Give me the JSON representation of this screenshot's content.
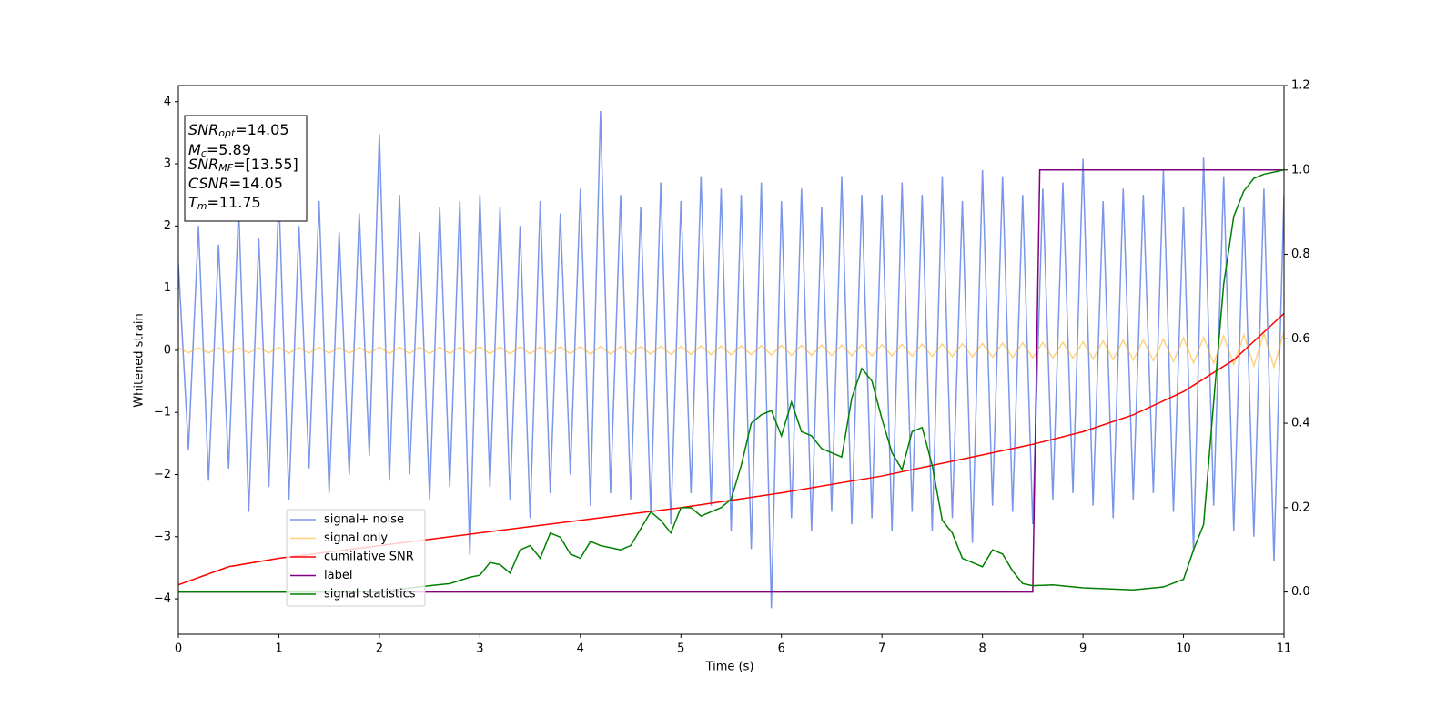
{
  "chart_data": {
    "type": "line",
    "xlabel": "Time (s)",
    "ylabel": "Whitened strain",
    "xlim": [
      0,
      11
    ],
    "xticks": [
      0,
      1,
      2,
      3,
      4,
      5,
      6,
      7,
      8,
      9,
      10,
      11
    ],
    "ylim": [
      -4.57,
      4.26
    ],
    "yticks": [
      {
        "value": -4,
        "label": "−4"
      },
      {
        "value": -3,
        "label": "−3"
      },
      {
        "value": -2,
        "label": "−2"
      },
      {
        "value": -1,
        "label": "−1"
      },
      0,
      1,
      2,
      3,
      4
    ],
    "y2lim": [
      -0.1,
      1.2
    ],
    "y2ticks": [
      {
        "value": 0,
        "label": "0.0"
      },
      {
        "value": 0.2,
        "label": "0.2"
      },
      {
        "value": 0.4,
        "label": "0.4"
      },
      {
        "value": 0.6,
        "label": "0.6"
      },
      {
        "value": 0.8,
        "label": "0.8"
      },
      {
        "value": 1,
        "label": "1.0"
      },
      {
        "value": 1.2,
        "label": "1.2"
      }
    ],
    "grid": false,
    "legend": "lower left",
    "annotations": [
      {
        "text": "SNR",
        "sub": "opt",
        "tail": "=14.05"
      },
      {
        "text": "M",
        "sub": "c",
        "tail": "=5.89"
      },
      {
        "text": "SNR",
        "sub": "MF",
        "tail": "=[13.55]"
      },
      {
        "text": "CSNR",
        "tail": "=14.05"
      },
      {
        "text": "T",
        "sub": "m",
        "tail": "=11.75"
      }
    ],
    "x": [
      0,
      0.1,
      0.2,
      0.3,
      0.4,
      0.5,
      0.6,
      0.7,
      0.8,
      0.9,
      1,
      1.1,
      1.2,
      1.3,
      1.4,
      1.5,
      1.6,
      1.7,
      1.8,
      1.9,
      2,
      2.1,
      2.2,
      2.3,
      2.4,
      2.5,
      2.6,
      2.7,
      2.8,
      2.9,
      3,
      3.1,
      3.2,
      3.3,
      3.4,
      3.5,
      3.6,
      3.7,
      3.8,
      3.9,
      4,
      4.1,
      4.2,
      4.3,
      4.4,
      4.5,
      4.6,
      4.7,
      4.8,
      4.9,
      5,
      5.1,
      5.2,
      5.3,
      5.4,
      5.5,
      5.6,
      5.7,
      5.8,
      5.9,
      6,
      6.1,
      6.2,
      6.3,
      6.4,
      6.5,
      6.6,
      6.7,
      6.8,
      6.9,
      7,
      7.1,
      7.2,
      7.3,
      7.4,
      7.5,
      7.6,
      7.7,
      7.8,
      7.9,
      8,
      8.1,
      8.2,
      8.3,
      8.4,
      8.5,
      8.6,
      8.7,
      8.8,
      8.9,
      9,
      9.1,
      9.2,
      9.3,
      9.4,
      9.5,
      9.6,
      9.7,
      9.8,
      9.9,
      10,
      10.1,
      10.2,
      10.3,
      10.4,
      10.5,
      10.6,
      10.7,
      10.8,
      10.9,
      11
    ],
    "series": [
      {
        "name": "signal+ noise",
        "color": "royalblue",
        "alpha": 0.7,
        "values": [
          1.4,
          -1.6,
          2.0,
          -2.1,
          1.7,
          -1.9,
          2.3,
          -2.6,
          1.8,
          -2.2,
          2.5,
          -2.4,
          2.0,
          -1.9,
          2.4,
          -2.3,
          1.9,
          -2.0,
          2.2,
          -1.7,
          3.48,
          -2.1,
          2.5,
          -2.0,
          1.9,
          -2.4,
          2.3,
          -2.2,
          2.4,
          -3.3,
          2.5,
          -2.2,
          2.3,
          -2.4,
          2.0,
          -2.7,
          2.4,
          -2.3,
          2.2,
          -2.0,
          2.6,
          -2.5,
          3.85,
          -2.3,
          2.5,
          -2.4,
          2.3,
          -2.6,
          2.7,
          -2.8,
          2.4,
          -2.3,
          2.8,
          -2.5,
          2.6,
          -2.9,
          2.5,
          -3.2,
          2.7,
          -4.15,
          2.4,
          -2.7,
          2.6,
          -2.9,
          2.3,
          -2.6,
          2.8,
          -2.8,
          2.5,
          -2.7,
          2.5,
          -2.9,
          2.7,
          -2.6,
          2.5,
          -2.9,
          2.8,
          -2.7,
          2.4,
          -3.1,
          2.9,
          -2.5,
          2.8,
          -2.6,
          2.5,
          -2.8,
          2.6,
          -2.4,
          2.7,
          -2.3,
          3.08,
          -2.5,
          2.4,
          -2.7,
          2.6,
          -2.4,
          2.5,
          -2.3,
          2.9,
          -2.6,
          2.3,
          -3.25,
          3.1,
          -2.5,
          2.8,
          -2.9,
          2.3,
          -3.0,
          2.6,
          -3.4,
          2.5
        ]
      },
      {
        "name": "signal only",
        "color": "orange",
        "alpha": 0.5,
        "values": [
          0.04,
          -0.04,
          0.04,
          -0.04,
          0.04,
          -0.04,
          0.04,
          -0.04,
          0.04,
          -0.04,
          0.045,
          -0.045,
          0.045,
          -0.045,
          0.045,
          -0.045,
          0.045,
          -0.045,
          0.045,
          -0.045,
          0.05,
          -0.05,
          0.05,
          -0.05,
          0.05,
          -0.05,
          0.05,
          -0.05,
          0.05,
          -0.05,
          0.055,
          -0.055,
          0.055,
          -0.055,
          0.055,
          -0.055,
          0.055,
          -0.055,
          0.055,
          -0.055,
          0.06,
          -0.06,
          0.06,
          -0.06,
          0.06,
          -0.06,
          0.06,
          -0.06,
          0.065,
          -0.065,
          0.065,
          -0.065,
          0.07,
          -0.07,
          0.07,
          -0.07,
          0.07,
          -0.07,
          0.075,
          -0.075,
          0.08,
          -0.08,
          0.08,
          -0.08,
          0.085,
          -0.085,
          0.085,
          -0.085,
          0.09,
          -0.09,
          0.09,
          -0.09,
          0.095,
          -0.095,
          0.1,
          -0.1,
          0.1,
          -0.1,
          0.105,
          -0.105,
          0.11,
          -0.11,
          0.115,
          -0.115,
          0.12,
          -0.12,
          0.125,
          -0.125,
          0.13,
          -0.13,
          0.14,
          -0.14,
          0.15,
          -0.15,
          0.16,
          -0.16,
          0.17,
          -0.17,
          0.18,
          -0.18,
          0.2,
          -0.2,
          0.21,
          -0.21,
          0.23,
          -0.23,
          0.25,
          -0.25,
          0.27,
          -0.27,
          0.3
        ]
      },
      {
        "name": "cumilative SNR",
        "color": "red",
        "axis": "y2",
        "x": [
          0,
          0.5,
          1,
          2,
          3,
          4,
          5,
          6,
          7,
          8,
          8.5,
          9,
          9.5,
          10,
          10.5,
          11
        ],
        "values": [
          0.017,
          0.06,
          0.08,
          0.11,
          0.14,
          0.17,
          0.2,
          0.235,
          0.275,
          0.325,
          0.35,
          0.38,
          0.42,
          0.475,
          0.55,
          0.66
        ]
      },
      {
        "name": "label",
        "color": "purple",
        "axis": "y2",
        "x": [
          0,
          8.5,
          8.57,
          11
        ],
        "values": [
          0,
          0,
          1,
          1
        ]
      },
      {
        "name": "signal statistics",
        "color": "green",
        "axis": "y2",
        "x": [
          0,
          1,
          2,
          2.5,
          2.7,
          2.9,
          3,
          3.1,
          3.2,
          3.3,
          3.4,
          3.5,
          3.6,
          3.7,
          3.8,
          3.9,
          4,
          4.1,
          4.2,
          4.3,
          4.4,
          4.5,
          4.6,
          4.7,
          4.8,
          4.9,
          5,
          5.1,
          5.2,
          5.3,
          5.4,
          5.5,
          5.6,
          5.7,
          5.8,
          5.9,
          6,
          6.1,
          6.2,
          6.3,
          6.4,
          6.5,
          6.6,
          6.7,
          6.8,
          6.9,
          7,
          7.1,
          7.2,
          7.3,
          7.4,
          7.5,
          7.6,
          7.7,
          7.8,
          7.9,
          8,
          8.1,
          8.2,
          8.3,
          8.4,
          8.5,
          8.7,
          9,
          9.5,
          9.8,
          10,
          10.1,
          10.2,
          10.3,
          10.4,
          10.5,
          10.6,
          10.7,
          10.8,
          11
        ],
        "values": [
          0,
          0,
          0.001,
          0.015,
          0.02,
          0.035,
          0.04,
          0.07,
          0.065,
          0.045,
          0.1,
          0.11,
          0.08,
          0.14,
          0.13,
          0.09,
          0.08,
          0.12,
          0.11,
          0.105,
          0.1,
          0.11,
          0.15,
          0.19,
          0.17,
          0.14,
          0.2,
          0.2,
          0.18,
          0.19,
          0.2,
          0.22,
          0.3,
          0.4,
          0.42,
          0.43,
          0.37,
          0.45,
          0.38,
          0.37,
          0.34,
          0.33,
          0.32,
          0.46,
          0.53,
          0.5,
          0.41,
          0.33,
          0.29,
          0.38,
          0.39,
          0.3,
          0.17,
          0.14,
          0.08,
          0.07,
          0.06,
          0.1,
          0.09,
          0.05,
          0.02,
          0.015,
          0.017,
          0.01,
          0.005,
          0.012,
          0.03,
          0.1,
          0.16,
          0.45,
          0.73,
          0.89,
          0.95,
          0.98,
          0.99,
          1
        ]
      }
    ]
  }
}
